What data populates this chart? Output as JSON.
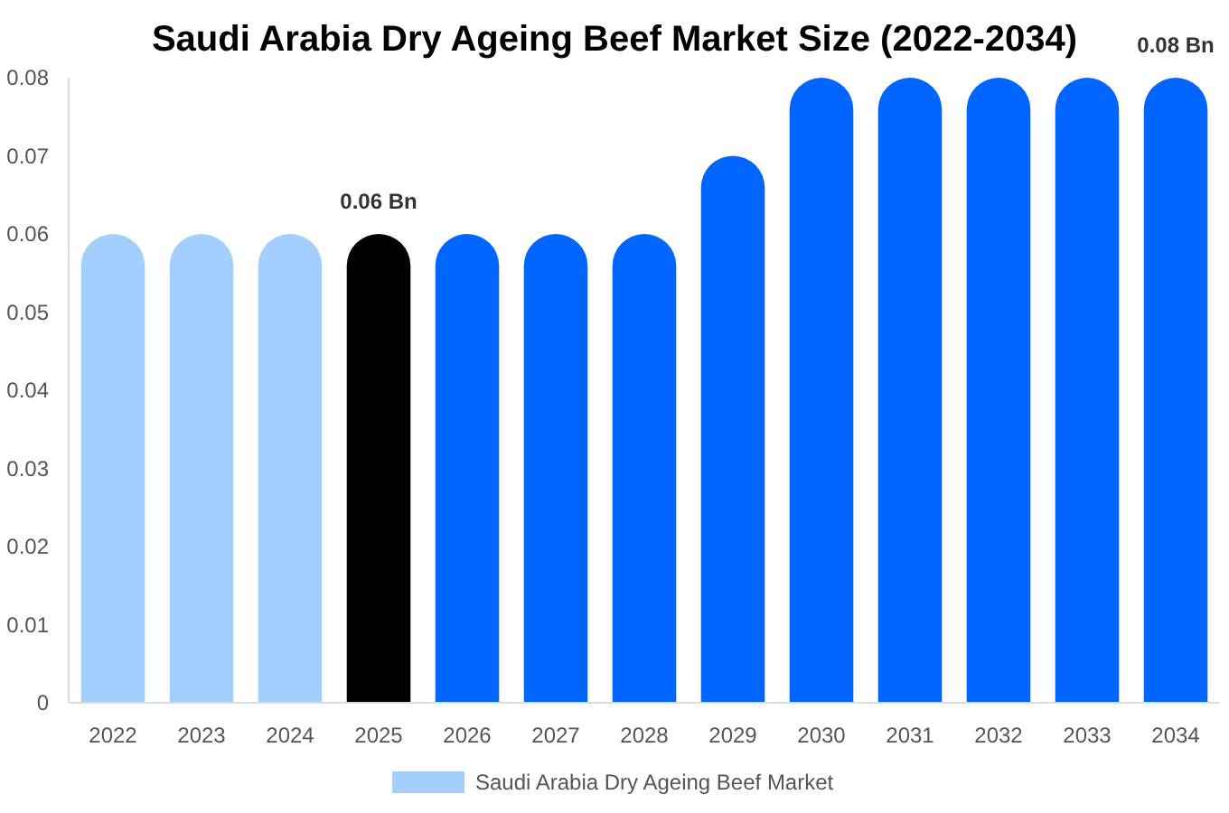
{
  "chart_data": {
    "type": "bar",
    "title": "Saudi Arabia Dry Ageing Beef Market Size (2022-2034)",
    "categories": [
      "2022",
      "2023",
      "2024",
      "2025",
      "2026",
      "2027",
      "2028",
      "2029",
      "2030",
      "2031",
      "2032",
      "2033",
      "2034"
    ],
    "series": [
      {
        "name": "Saudi Arabia Dry Ageing Beef Market",
        "color": "#a3cfff",
        "values": [
          0.06,
          0.06,
          0.06,
          0.06,
          0.06,
          0.06,
          0.06,
          0.07,
          0.08,
          0.08,
          0.08,
          0.08,
          0.08
        ],
        "colors": [
          "#a3cfff",
          "#a3cfff",
          "#a3cfff",
          "#000000",
          "#0066ff",
          "#0066ff",
          "#0066ff",
          "#0066ff",
          "#0066ff",
          "#0066ff",
          "#0066ff",
          "#0066ff",
          "#0066ff"
        ],
        "value_labels": [
          null,
          null,
          null,
          "0.06 Bn",
          null,
          null,
          null,
          null,
          null,
          null,
          null,
          null,
          "0.08 Bn"
        ]
      }
    ],
    "ylim": [
      0,
      0.08
    ],
    "yticks": [
      0,
      0.01,
      0.02,
      0.03,
      0.04,
      0.05,
      0.06,
      0.07,
      0.08
    ],
    "grid": false,
    "legend": "bottom"
  }
}
